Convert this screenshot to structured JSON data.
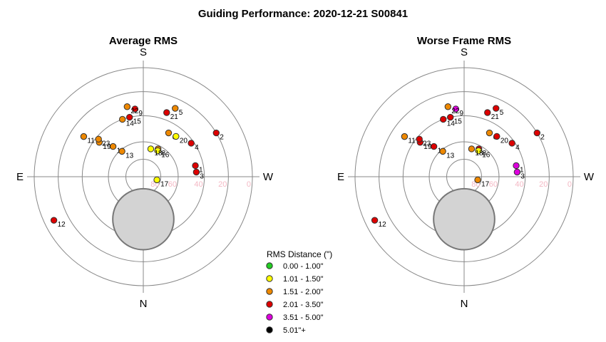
{
  "page_title": "Guiding Performance: 2020-12-21 S00841",
  "colors": {
    "c1": "#22cc22",
    "c2": "#ffff00",
    "c3": "#ee8800",
    "c4": "#dd0000",
    "c5": "#dd00dd",
    "c6": "#000000"
  },
  "chart_data": [
    {
      "type": "scatter",
      "subtype": "polar-sky",
      "title": "Average RMS",
      "directions": {
        "top": "S",
        "bottom": "N",
        "left": "E",
        "right": "W"
      },
      "ring_labels": [
        "80",
        "60",
        "40",
        "20",
        "0"
      ],
      "points": [
        {
          "label": "1",
          "az": 258,
          "alt": 46,
          "cls": "c4"
        },
        {
          "label": "2",
          "az": 239,
          "alt": 20,
          "cls": "c4"
        },
        {
          "label": "3",
          "az": 265,
          "alt": 46,
          "cls": "c4"
        },
        {
          "label": "4",
          "az": 235,
          "alt": 42,
          "cls": "c4"
        },
        {
          "label": "5",
          "az": 205,
          "alt": 28,
          "cls": "c3"
        },
        {
          "label": "6",
          "az": 210,
          "alt": 48,
          "cls": "c3"
        },
        {
          "label": "8",
          "az": 208,
          "alt": 64,
          "cls": "c3"
        },
        {
          "label": "9",
          "az": 173,
          "alt": 34,
          "cls": "c4"
        },
        {
          "label": "10",
          "az": 135,
          "alt": 54,
          "cls": "c3"
        },
        {
          "label": "11",
          "az": 124,
          "alt": 31,
          "cls": "c3"
        },
        {
          "label": "12",
          "az": 64,
          "alt": 8,
          "cls": "c4"
        },
        {
          "label": "13",
          "az": 140,
          "alt": 62,
          "cls": "c3"
        },
        {
          "label": "14",
          "az": 160,
          "alt": 40,
          "cls": "c3"
        },
        {
          "label": "15",
          "az": 167,
          "alt": 40,
          "cls": "c4"
        },
        {
          "label": "16",
          "az": 209,
          "alt": 66,
          "cls": "c2"
        },
        {
          "label": "17",
          "az": 283,
          "alt": 82,
          "cls": "c2"
        },
        {
          "label": "18",
          "az": 195,
          "alt": 67,
          "cls": "c2"
        },
        {
          "label": "19",
          "az": 128,
          "alt": 44,
          "cls": "c3"
        },
        {
          "label": "20",
          "az": 219,
          "alt": 47,
          "cls": "c2"
        },
        {
          "label": "21",
          "az": 200,
          "alt": 34,
          "cls": "c4"
        },
        {
          "label": "22",
          "az": 167,
          "alt": 31,
          "cls": "c3"
        },
        {
          "label": "23",
          "az": 130,
          "alt": 42,
          "cls": "c3"
        }
      ]
    },
    {
      "type": "scatter",
      "subtype": "polar-sky",
      "title": "Worse Frame RMS",
      "directions": {
        "top": "S",
        "bottom": "N",
        "left": "E",
        "right": "W"
      },
      "ring_labels": [
        "80",
        "60",
        "40",
        "20",
        "0"
      ],
      "points": [
        {
          "label": "1",
          "az": 258,
          "alt": 46,
          "cls": "c5"
        },
        {
          "label": "2",
          "az": 239,
          "alt": 20,
          "cls": "c4"
        },
        {
          "label": "3",
          "az": 265,
          "alt": 46,
          "cls": "c5"
        },
        {
          "label": "4",
          "az": 235,
          "alt": 42,
          "cls": "c4"
        },
        {
          "label": "5",
          "az": 205,
          "alt": 28,
          "cls": "c4"
        },
        {
          "label": "6",
          "az": 210,
          "alt": 48,
          "cls": "c3"
        },
        {
          "label": "8",
          "az": 208,
          "alt": 64,
          "cls": "c4"
        },
        {
          "label": "9",
          "az": 173,
          "alt": 34,
          "cls": "c5"
        },
        {
          "label": "10",
          "az": 135,
          "alt": 54,
          "cls": "c4"
        },
        {
          "label": "11",
          "az": 124,
          "alt": 31,
          "cls": "c3"
        },
        {
          "label": "12",
          "az": 64,
          "alt": 8,
          "cls": "c4"
        },
        {
          "label": "13",
          "az": 140,
          "alt": 62,
          "cls": "c3"
        },
        {
          "label": "14",
          "az": 160,
          "alt": 40,
          "cls": "c4"
        },
        {
          "label": "15",
          "az": 167,
          "alt": 40,
          "cls": "c4"
        },
        {
          "label": "16",
          "az": 209,
          "alt": 66,
          "cls": "c2"
        },
        {
          "label": "17",
          "az": 283,
          "alt": 82,
          "cls": "c3"
        },
        {
          "label": "18",
          "az": 195,
          "alt": 67,
          "cls": "c3"
        },
        {
          "label": "19",
          "az": 128,
          "alt": 44,
          "cls": "c4"
        },
        {
          "label": "20",
          "az": 219,
          "alt": 47,
          "cls": "c4"
        },
        {
          "label": "21",
          "az": 200,
          "alt": 34,
          "cls": "c4"
        },
        {
          "label": "22",
          "az": 167,
          "alt": 31,
          "cls": "c3"
        },
        {
          "label": "23",
          "az": 130,
          "alt": 42,
          "cls": "c4"
        }
      ]
    }
  ],
  "legend": {
    "title": "RMS Distance (\")",
    "items": [
      {
        "label": "0.00 - 1.00\"",
        "cls": "c1"
      },
      {
        "label": "1.01 - 1.50\"",
        "cls": "c2"
      },
      {
        "label": "1.51 - 2.00\"",
        "cls": "c3"
      },
      {
        "label": "2.01 - 3.50\"",
        "cls": "c4"
      },
      {
        "label": "3.51 - 5.00\"",
        "cls": "c5"
      },
      {
        "label": "5.01\"+",
        "cls": "c6"
      }
    ]
  }
}
